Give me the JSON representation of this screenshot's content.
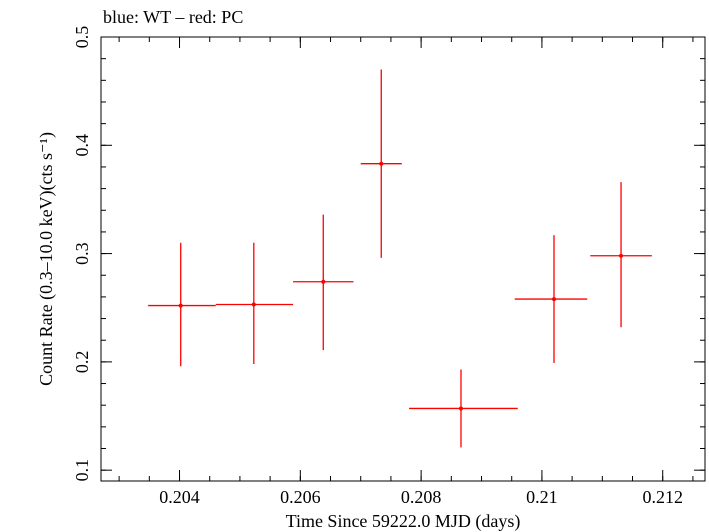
{
  "chart_data": {
    "type": "scatter",
    "title": "blue: WT – red: PC",
    "xlabel": "Time Since 59222.0 MJD (days)",
    "ylabel": "Count Rate (0.3–10.0 keV)(cts s⁻¹)",
    "xlim": [
      0.2027,
      0.2127
    ],
    "ylim": [
      0.09,
      0.5
    ],
    "x_ticks": [
      0.204,
      0.206,
      0.208,
      0.21,
      0.212
    ],
    "x_tick_labels": [
      "0.204",
      "0.206",
      "0.208",
      "0.21",
      "0.212"
    ],
    "y_ticks": [
      0.1,
      0.2,
      0.3,
      0.4,
      0.5
    ],
    "y_tick_labels": [
      "0.1",
      "0.2",
      "0.3",
      "0.4",
      "0.5"
    ],
    "grid": false,
    "series": [
      {
        "name": "PC",
        "color": "#ff0000",
        "points": [
          {
            "x": 0.20402,
            "y": 0.252,
            "xlo": 0.20348,
            "xhi": 0.2046,
            "ylo": 0.196,
            "yhi": 0.31
          },
          {
            "x": 0.20523,
            "y": 0.253,
            "xlo": 0.2046,
            "xhi": 0.20588,
            "ylo": 0.198,
            "yhi": 0.31
          },
          {
            "x": 0.20638,
            "y": 0.274,
            "xlo": 0.20588,
            "xhi": 0.20688,
            "ylo": 0.211,
            "yhi": 0.336
          },
          {
            "x": 0.20734,
            "y": 0.383,
            "xlo": 0.207,
            "xhi": 0.20768,
            "ylo": 0.296,
            "yhi": 0.47
          },
          {
            "x": 0.20866,
            "y": 0.157,
            "xlo": 0.2078,
            "xhi": 0.2096,
            "ylo": 0.121,
            "yhi": 0.193
          },
          {
            "x": 0.2102,
            "y": 0.258,
            "xlo": 0.20955,
            "xhi": 0.21075,
            "ylo": 0.199,
            "yhi": 0.317
          },
          {
            "x": 0.21131,
            "y": 0.298,
            "xlo": 0.2108,
            "xhi": 0.21182,
            "ylo": 0.232,
            "yhi": 0.366
          }
        ]
      }
    ]
  }
}
